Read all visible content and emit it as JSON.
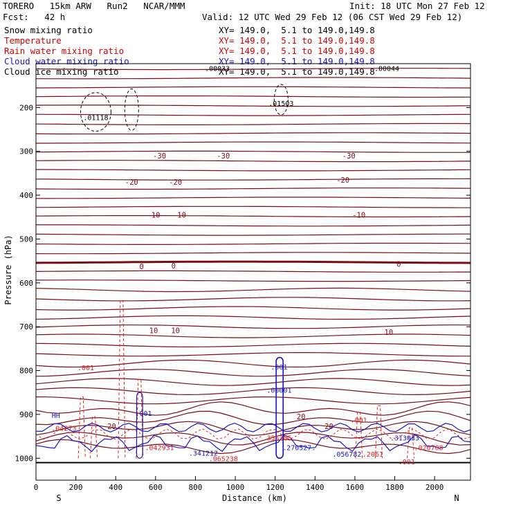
{
  "header": {
    "model": "TORERO   15km ARW   Run2   NCAR/MMM",
    "init": "Init: 18 UTC Mon 27 Feb 12",
    "fcst": "Fcst:   42 h",
    "valid": "Valid: 12 UTC Wed 29 Feb 12 (06 CST Wed 29 Feb 12)"
  },
  "legend": [
    {
      "name": "Snow mixing ratio",
      "xy": "XY= 149.0,  5.1 to 149.0,149.8",
      "color": "#000000"
    },
    {
      "name": "Temperature",
      "xy": "XY= 149.0,  5.1 to 149.0,149.8",
      "color": "#d40000"
    },
    {
      "name": "Rain water mixing ratio",
      "xy": "XY= 149.0,  5.1 to 149.0,149.8",
      "color": "#d40000"
    },
    {
      "name": "Cloud water mixing ratio",
      "xy": "XY= 149.0,  5.1 to 149.0,149.8",
      "color": "#1515c8"
    },
    {
      "name": "Cloud ice mixing ratio",
      "xy": "XY= 149.0,  5.1 to 149.0,149.8",
      "color": "#000000"
    }
  ],
  "chart_data": {
    "type": "contour cross-section",
    "xlabel": "Distance (km)",
    "ylabel": "Pressure (hPa)",
    "xlim": [
      0,
      2180
    ],
    "ylim": [
      1050,
      100
    ],
    "x_ticks": [
      0,
      200,
      400,
      600,
      800,
      1000,
      1200,
      1400,
      1600,
      1800,
      2000
    ],
    "y_ticks": [
      200,
      300,
      400,
      500,
      600,
      700,
      800,
      900,
      1000
    ],
    "x_end_labels": {
      "left": "S",
      "right": "N"
    },
    "temperature_labels": [
      {
        "label": "-30",
        "x": 620,
        "p": 310
      },
      {
        "label": "-30",
        "x": 940,
        "p": 310
      },
      {
        "label": "-30",
        "x": 1570,
        "p": 310
      },
      {
        "label": "-20",
        "x": 480,
        "p": 370
      },
      {
        "label": "-20",
        "x": 700,
        "p": 370
      },
      {
        "label": "-20",
        "x": 1540,
        "p": 365
      },
      {
        "label": "-10",
        "x": 590,
        "p": 445
      },
      {
        "label": "-10",
        "x": 720,
        "p": 445
      },
      {
        "label": "-10",
        "x": 1620,
        "p": 445
      },
      {
        "label": "0",
        "x": 530,
        "p": 562
      },
      {
        "label": "0",
        "x": 690,
        "p": 561
      },
      {
        "label": "0",
        "x": 1820,
        "p": 557
      },
      {
        "label": "10",
        "x": 590,
        "p": 708
      },
      {
        "label": "10",
        "x": 700,
        "p": 708
      },
      {
        "label": "10",
        "x": 1770,
        "p": 712
      },
      {
        "label": "20",
        "x": 380,
        "p": 927
      },
      {
        "label": "20",
        "x": 1330,
        "p": 905
      },
      {
        "label": "20",
        "x": 1470,
        "p": 927
      }
    ],
    "maxima": [
      {
        "value": ".01118",
        "x": 300,
        "p": 222,
        "series": "snow"
      },
      {
        "value": ".01503",
        "x": 1230,
        "p": 190,
        "series": "cloud ice"
      },
      {
        "value": ".00033",
        "x": 910,
        "p": 110,
        "series": "cloud ice"
      },
      {
        "value": ".00044",
        "x": 1760,
        "p": 110,
        "series": "cloud ice"
      },
      {
        "value": ".001",
        "x": 250,
        "p": 793,
        "series": "rain"
      },
      {
        "value": ".001",
        "x": 1620,
        "p": 912,
        "series": "rain"
      },
      {
        "value": ".001",
        "x": 1860,
        "p": 1007,
        "series": "rain"
      },
      {
        "value": ".04273",
        "x": 140,
        "p": 931,
        "series": "rain"
      },
      {
        "value": ".042931",
        "x": 620,
        "p": 975,
        "series": "rain"
      },
      {
        "value": ".065238",
        "x": 940,
        "p": 1000,
        "series": "rain"
      },
      {
        "value": ".355305",
        "x": 1210,
        "p": 953,
        "series": "rain"
      },
      {
        "value": ".2061",
        "x": 1690,
        "p": 990,
        "series": "rain"
      },
      {
        "value": ".020708",
        "x": 1970,
        "p": 975,
        "series": "rain"
      },
      {
        "value": ".001",
        "x": 1220,
        "p": 791,
        "series": "cloud water"
      },
      {
        "value": ".00001",
        "x": 1220,
        "p": 844,
        "series": "cloud water"
      },
      {
        "value": ".001",
        "x": 540,
        "p": 897,
        "series": "cloud water"
      },
      {
        "value": ".341212",
        "x": 840,
        "p": 988,
        "series": "cloud water"
      },
      {
        "value": ".270527.",
        "x": 1320,
        "p": 975,
        "series": "cloud water"
      },
      {
        "value": ".056782",
        "x": 1560,
        "p": 990,
        "series": "cloud water"
      },
      {
        "value": ".313033",
        "x": 1850,
        "p": 953,
        "series": "cloud water"
      },
      {
        "value": "HH",
        "x": 100,
        "p": 902,
        "series": "cloud water"
      }
    ]
  }
}
